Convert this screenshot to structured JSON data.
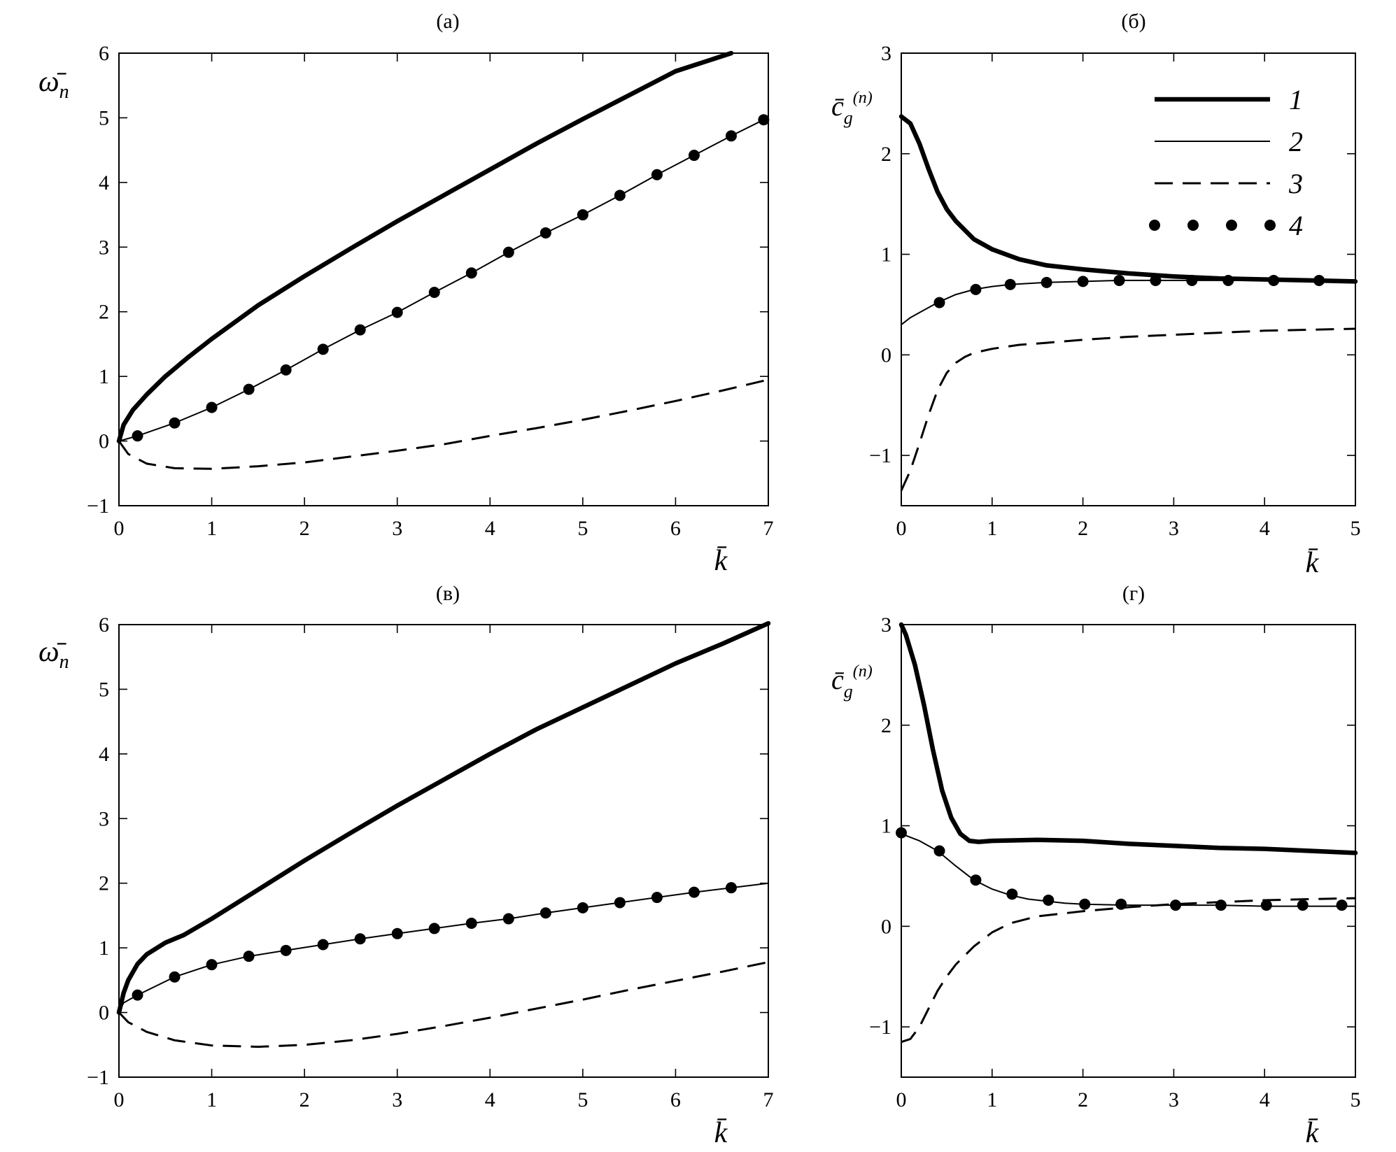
{
  "figure": {
    "panels": [
      {
        "label": "(а)",
        "ylabel": "ω̄",
        "ylabel_sub": "n",
        "xlabel": "k̄"
      },
      {
        "label": "(б)",
        "ylabel": "c̄",
        "ylabel_sub": "g",
        "ylabel_sup": "(n)",
        "xlabel": "k̄"
      },
      {
        "label": "(в)",
        "ylabel": "ω̄",
        "ylabel_sub": "n",
        "xlabel": "k̄"
      },
      {
        "label": "(г)",
        "ylabel": "c̄",
        "ylabel_sub": "g",
        "ylabel_sup": "(n)",
        "xlabel": "k̄"
      }
    ],
    "legend": [
      {
        "label": "1",
        "style": "thick-solid"
      },
      {
        "label": "2",
        "style": "thin-solid"
      },
      {
        "label": "3",
        "style": "dashed"
      },
      {
        "label": "4",
        "style": "dots"
      }
    ]
  },
  "chart_data": [
    {
      "type": "line",
      "title": "(а)",
      "xlabel": "k̄",
      "ylabel": "ω̄n",
      "xlim": [
        0,
        7
      ],
      "ylim": [
        -1,
        6
      ],
      "xticks": [
        "0",
        "1",
        "2",
        "3",
        "4",
        "5",
        "6",
        "7"
      ],
      "yticks": [
        "−1",
        "0",
        "1",
        "2",
        "3",
        "4",
        "5",
        "6"
      ],
      "series": [
        {
          "name": "1",
          "style": "thick-solid",
          "x": [
            0,
            0.05,
            0.15,
            0.3,
            0.5,
            0.75,
            1,
            1.5,
            2,
            2.5,
            3,
            3.5,
            4,
            4.5,
            5,
            5.5,
            6,
            6.6
          ],
          "y": [
            0,
            0.25,
            0.48,
            0.72,
            1.0,
            1.3,
            1.58,
            2.1,
            2.55,
            2.98,
            3.4,
            3.8,
            4.2,
            4.6,
            4.98,
            5.35,
            5.72,
            6.0
          ]
        },
        {
          "name": "2",
          "style": "thin-solid",
          "x": [
            0,
            0.2,
            0.6,
            1,
            1.4,
            1.8,
            2.2,
            2.6,
            3,
            3.4,
            3.8,
            4.2,
            4.6,
            5,
            5.4,
            5.8,
            6.2,
            6.6,
            6.95
          ],
          "y": [
            0,
            0.08,
            0.28,
            0.52,
            0.8,
            1.1,
            1.42,
            1.72,
            1.99,
            2.3,
            2.6,
            2.92,
            3.22,
            3.5,
            3.8,
            4.12,
            4.42,
            4.72,
            4.97
          ]
        },
        {
          "name": "3",
          "style": "dashed",
          "x": [
            0,
            0.1,
            0.3,
            0.6,
            1,
            1.5,
            2,
            2.5,
            3,
            3.5,
            4,
            4.5,
            5,
            5.5,
            6,
            6.5,
            7
          ],
          "y": [
            0,
            -0.2,
            -0.35,
            -0.42,
            -0.43,
            -0.39,
            -0.33,
            -0.24,
            -0.15,
            -0.05,
            0.08,
            0.2,
            0.33,
            0.47,
            0.62,
            0.78,
            0.95
          ]
        },
        {
          "name": "4",
          "style": "dots",
          "x": [
            0.2,
            0.6,
            1,
            1.4,
            1.8,
            2.2,
            2.6,
            3,
            3.4,
            3.8,
            4.2,
            4.6,
            5,
            5.4,
            5.8,
            6.2,
            6.6,
            6.95
          ],
          "y": [
            0.08,
            0.28,
            0.52,
            0.8,
            1.1,
            1.42,
            1.72,
            1.99,
            2.3,
            2.6,
            2.92,
            3.22,
            3.5,
            3.8,
            4.12,
            4.42,
            4.72,
            4.97
          ]
        }
      ]
    },
    {
      "type": "line",
      "title": "(б)",
      "xlabel": "k̄",
      "ylabel": "c̄g(n)",
      "xlim": [
        0,
        5
      ],
      "ylim": [
        -1.5,
        3
      ],
      "xticks": [
        "0",
        "1",
        "2",
        "3",
        "4",
        "5"
      ],
      "yticks": [
        "−1",
        "0",
        "1",
        "2",
        "3"
      ],
      "ytick_values": [
        -1,
        0,
        1,
        2,
        3
      ],
      "legend_position": "top-right",
      "series": [
        {
          "name": "1",
          "style": "thick-solid",
          "x": [
            0,
            0.1,
            0.2,
            0.3,
            0.4,
            0.5,
            0.6,
            0.8,
            1,
            1.3,
            1.6,
            2,
            2.5,
            3,
            3.5,
            4,
            4.5,
            5
          ],
          "y": [
            2.37,
            2.3,
            2.1,
            1.85,
            1.62,
            1.45,
            1.33,
            1.15,
            1.05,
            0.95,
            0.89,
            0.85,
            0.81,
            0.78,
            0.76,
            0.75,
            0.74,
            0.73
          ]
        },
        {
          "name": "2",
          "style": "thin-solid",
          "x": [
            0,
            0.1,
            0.2,
            0.4,
            0.6,
            0.8,
            1,
            1.2,
            1.6,
            2,
            2.4,
            3,
            3.6,
            4.2,
            5
          ],
          "y": [
            0.3,
            0.37,
            0.42,
            0.52,
            0.6,
            0.65,
            0.68,
            0.7,
            0.72,
            0.73,
            0.74,
            0.74,
            0.74,
            0.74,
            0.73
          ]
        },
        {
          "name": "3",
          "style": "dashed",
          "x": [
            0,
            0.1,
            0.2,
            0.3,
            0.4,
            0.5,
            0.6,
            0.7,
            0.8,
            1,
            1.3,
            1.6,
            2,
            2.5,
            3,
            3.5,
            4,
            4.5,
            5
          ],
          "y": [
            -1.35,
            -1.15,
            -0.88,
            -0.6,
            -0.35,
            -0.18,
            -0.08,
            -0.02,
            0.02,
            0.06,
            0.1,
            0.12,
            0.15,
            0.18,
            0.2,
            0.22,
            0.24,
            0.25,
            0.26
          ]
        },
        {
          "name": "4",
          "style": "dots",
          "x": [
            0.42,
            0.82,
            1.2,
            1.6,
            2.0,
            2.4,
            2.8,
            3.2,
            3.6,
            4.1,
            4.6
          ],
          "y": [
            0.52,
            0.65,
            0.7,
            0.72,
            0.73,
            0.74,
            0.74,
            0.74,
            0.74,
            0.74,
            0.74
          ]
        }
      ]
    },
    {
      "type": "line",
      "title": "(в)",
      "xlabel": "k̄",
      "ylabel": "ω̄n",
      "xlim": [
        0,
        7
      ],
      "ylim": [
        -1,
        6
      ],
      "xticks": [
        "0",
        "1",
        "2",
        "3",
        "4",
        "5",
        "6",
        "7"
      ],
      "yticks": [
        "−1",
        "0",
        "1",
        "2",
        "3",
        "4",
        "5",
        "6"
      ],
      "series": [
        {
          "name": "1",
          "style": "thick-solid",
          "x": [
            0,
            0.05,
            0.1,
            0.2,
            0.3,
            0.5,
            0.7,
            1,
            1.5,
            2,
            2.5,
            3,
            3.5,
            4,
            4.5,
            5,
            5.5,
            6,
            6.5,
            7
          ],
          "y": [
            0,
            0.3,
            0.5,
            0.75,
            0.9,
            1.08,
            1.2,
            1.45,
            1.9,
            2.35,
            2.78,
            3.2,
            3.6,
            4.0,
            4.38,
            4.72,
            5.06,
            5.4,
            5.7,
            6.02
          ]
        },
        {
          "name": "2",
          "style": "thin-solid",
          "x": [
            0,
            0.05,
            0.2,
            0.6,
            1,
            1.4,
            1.8,
            2.2,
            2.6,
            3,
            3.4,
            3.8,
            4.2,
            4.6,
            5,
            5.4,
            5.8,
            6.2,
            6.6,
            7
          ],
          "y": [
            0,
            0.15,
            0.27,
            0.55,
            0.74,
            0.87,
            0.96,
            1.05,
            1.14,
            1.22,
            1.3,
            1.38,
            1.45,
            1.54,
            1.62,
            1.7,
            1.78,
            1.86,
            1.93,
            2.0
          ]
        },
        {
          "name": "3",
          "style": "dashed",
          "x": [
            0,
            0.1,
            0.3,
            0.6,
            1,
            1.5,
            2,
            2.5,
            3,
            3.5,
            4,
            4.5,
            5,
            5.5,
            6,
            6.5,
            7
          ],
          "y": [
            0,
            -0.15,
            -0.3,
            -0.43,
            -0.51,
            -0.53,
            -0.5,
            -0.43,
            -0.33,
            -0.21,
            -0.08,
            0.06,
            0.2,
            0.35,
            0.49,
            0.63,
            0.78
          ]
        },
        {
          "name": "4",
          "style": "dots",
          "x": [
            0.2,
            0.6,
            1,
            1.4,
            1.8,
            2.2,
            2.6,
            3,
            3.4,
            3.8,
            4.2,
            4.6,
            5,
            5.4,
            5.8,
            6.2,
            6.6
          ],
          "y": [
            0.27,
            0.55,
            0.74,
            0.87,
            0.96,
            1.05,
            1.14,
            1.22,
            1.3,
            1.38,
            1.45,
            1.54,
            1.62,
            1.7,
            1.78,
            1.86,
            1.93
          ]
        }
      ]
    },
    {
      "type": "line",
      "title": "(г)",
      "xlabel": "k̄",
      "ylabel": "c̄g(n)",
      "xlim": [
        0,
        5
      ],
      "ylim": [
        -1.5,
        3
      ],
      "xticks": [
        "0",
        "1",
        "2",
        "3",
        "4",
        "5"
      ],
      "yticks": [
        "−1",
        "0",
        "1",
        "2",
        "3"
      ],
      "ytick_values": [
        -1,
        0,
        1,
        2,
        3
      ],
      "series": [
        {
          "name": "1",
          "style": "thick-solid",
          "x": [
            0,
            0.05,
            0.15,
            0.25,
            0.35,
            0.45,
            0.55,
            0.65,
            0.75,
            0.85,
            1,
            1.5,
            2,
            2.5,
            3,
            3.5,
            4,
            4.5,
            5
          ],
          "y": [
            3.0,
            2.9,
            2.6,
            2.2,
            1.75,
            1.35,
            1.08,
            0.92,
            0.85,
            0.84,
            0.85,
            0.86,
            0.85,
            0.82,
            0.8,
            0.78,
            0.77,
            0.75,
            0.73
          ]
        },
        {
          "name": "2",
          "style": "thin-solid",
          "x": [
            0,
            0.2,
            0.4,
            0.6,
            0.8,
            1,
            1.2,
            1.4,
            1.6,
            1.8,
            2,
            2.5,
            3,
            3.5,
            4,
            4.5,
            5
          ],
          "y": [
            0.92,
            0.85,
            0.75,
            0.6,
            0.46,
            0.37,
            0.31,
            0.27,
            0.25,
            0.23,
            0.22,
            0.21,
            0.21,
            0.21,
            0.2,
            0.2,
            0.2
          ]
        },
        {
          "name": "3",
          "style": "dashed",
          "x": [
            0,
            0.1,
            0.2,
            0.3,
            0.4,
            0.5,
            0.6,
            0.8,
            1,
            1.2,
            1.5,
            2,
            2.5,
            3,
            3.5,
            4,
            4.5,
            5
          ],
          "y": [
            -1.15,
            -1.12,
            -1.0,
            -0.82,
            -0.64,
            -0.5,
            -0.38,
            -0.2,
            -0.06,
            0.03,
            0.1,
            0.15,
            0.19,
            0.22,
            0.24,
            0.26,
            0.27,
            0.28
          ]
        },
        {
          "name": "4",
          "style": "dots",
          "x": [
            0,
            0.42,
            0.82,
            1.22,
            1.62,
            2.02,
            2.42,
            3.02,
            3.52,
            4.02,
            4.42,
            4.85
          ],
          "y": [
            0.93,
            0.75,
            0.46,
            0.32,
            0.26,
            0.22,
            0.22,
            0.21,
            0.21,
            0.21,
            0.21,
            0.21
          ]
        }
      ]
    }
  ]
}
